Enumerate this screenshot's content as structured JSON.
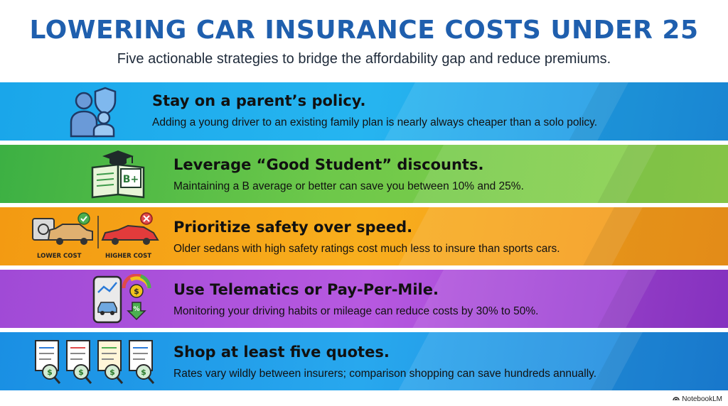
{
  "header": {
    "title": "LOWERING CAR INSURANCE COSTS UNDER 25",
    "subtitle": "Five actionable strategies to bridge the affordability gap and reduce premiums."
  },
  "strategies": [
    {
      "heading": "Stay on a parent’s policy.",
      "description": "Adding a young driver to an existing family plan is nearly always cheaper than a solo policy.",
      "icon": "family-shield-icon",
      "color": "#1aa6ea"
    },
    {
      "heading": "Leverage “Good Student” discounts.",
      "description": "Maintaining a B average or better can save you between 10% and 25%.",
      "icon": "graduation-book-icon",
      "icon_text": "B+",
      "color": "#6dc84a"
    },
    {
      "heading": "Prioritize safety over speed.",
      "description": "Older sedans with high safety ratings cost much less to insure than sports cars.",
      "icon": "sedan-vs-sportscar-icon",
      "labels": {
        "lower": "LOWER COST",
        "higher": "HIGHER COST"
      },
      "color": "#f8ae1d"
    },
    {
      "heading": "Use Telematics or Pay-Per-Mile.",
      "description": "Monitoring your driving habits or mileage can reduce costs by 30% to 50%.",
      "icon": "telematics-phone-icon",
      "color": "#b759e0"
    },
    {
      "heading": "Shop at least five quotes.",
      "description": "Rates vary wildly between insurers; comparison shopping can save hundreds annually.",
      "icon": "quote-comparison-icon",
      "color": "#28a8ee"
    }
  ],
  "brand": {
    "name": "NotebookLM"
  }
}
